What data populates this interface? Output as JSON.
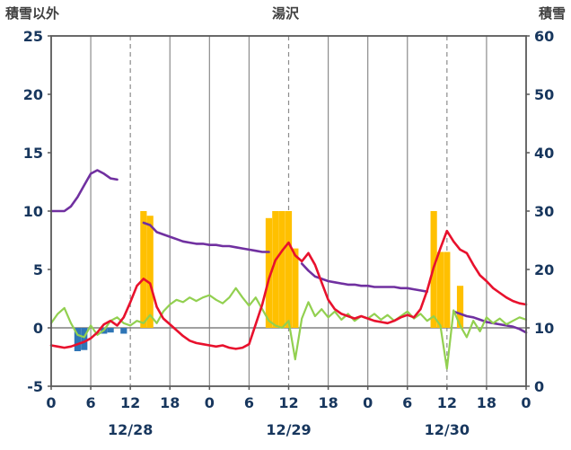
{
  "header": {
    "left_axis_title": "積雪以外",
    "station": "湯沢",
    "right_axis_title": "積雪"
  },
  "colors": {
    "axis_text": "#17365d",
    "grid": "#8c8c8c",
    "frame": "#595959",
    "zero_line": "#808080",
    "snowfall_bar": "#FFC000",
    "precip_bar": "#2E75B6",
    "snow_depth_line": "#7030A0",
    "temperature_line": "#E8112D",
    "wind_line": "#92D050"
  },
  "chart_data": {
    "type": "line",
    "title": "湯沢",
    "x_axis": {
      "hours_total": 72,
      "tick_step": 6,
      "tick_labels": [
        "0",
        "6",
        "12",
        "18",
        "0",
        "6",
        "12",
        "18",
        "0",
        "6",
        "12",
        "18",
        "0"
      ],
      "date_labels": [
        "12/28",
        "12/29",
        "12/30"
      ],
      "date_label_hours": [
        12,
        36,
        60
      ],
      "dashed_hours": [
        12,
        36,
        60
      ]
    },
    "left_axis": {
      "label": "積雪以外",
      "min": -5,
      "max": 25,
      "ticks": [
        25,
        20,
        15,
        10,
        5,
        0,
        -5
      ]
    },
    "right_axis": {
      "label": "積雪",
      "min": 0,
      "max": 60,
      "ticks": [
        60,
        50,
        40,
        30,
        20,
        10,
        0
      ]
    },
    "series": [
      {
        "name": "snowfall_bars",
        "type": "bar",
        "color_key": "snowfall_bar",
        "points": [
          [
            14,
            10
          ],
          [
            15,
            9.6
          ],
          [
            33,
            9.4
          ],
          [
            34,
            10
          ],
          [
            35,
            10
          ],
          [
            36,
            10
          ],
          [
            37,
            6.8
          ],
          [
            58,
            10
          ],
          [
            59,
            6.5
          ],
          [
            60,
            6.5
          ],
          [
            62,
            3.6
          ]
        ]
      },
      {
        "name": "precip_bars",
        "type": "bar",
        "color_key": "precip_bar",
        "points": [
          [
            4,
            -2.0
          ],
          [
            5,
            -1.9
          ],
          [
            8,
            -0.5
          ],
          [
            9,
            -0.4
          ],
          [
            11,
            -0.5
          ]
        ]
      },
      {
        "name": "snow_depth_line",
        "type": "line",
        "color_key": "snow_depth_line",
        "width": 2.6,
        "segments": [
          [
            [
              0,
              10
            ],
            [
              1,
              10
            ],
            [
              2,
              10
            ],
            [
              3,
              10.4
            ],
            [
              4,
              11.2
            ],
            [
              5,
              12.2
            ],
            [
              6,
              13.2
            ],
            [
              7,
              13.5
            ],
            [
              8,
              13.2
            ],
            [
              9,
              12.8
            ],
            [
              10,
              12.7
            ]
          ],
          [
            [
              14,
              9.0
            ],
            [
              15,
              8.8
            ],
            [
              16,
              8.2
            ],
            [
              17,
              8.0
            ],
            [
              18,
              7.8
            ],
            [
              19,
              7.6
            ],
            [
              20,
              7.4
            ],
            [
              21,
              7.3
            ],
            [
              22,
              7.2
            ],
            [
              23,
              7.2
            ],
            [
              24,
              7.1
            ],
            [
              25,
              7.1
            ],
            [
              26,
              7.0
            ],
            [
              27,
              7.0
            ],
            [
              28,
              6.9
            ],
            [
              29,
              6.8
            ],
            [
              30,
              6.7
            ],
            [
              31,
              6.6
            ],
            [
              32,
              6.5
            ],
            [
              33,
              6.5
            ]
          ],
          [
            [
              38,
              5.5
            ],
            [
              39,
              4.9
            ],
            [
              40,
              4.4
            ],
            [
              41,
              4.2
            ],
            [
              42,
              4.0
            ],
            [
              43,
              3.9
            ],
            [
              44,
              3.8
            ],
            [
              45,
              3.7
            ],
            [
              46,
              3.7
            ],
            [
              47,
              3.6
            ],
            [
              48,
              3.6
            ],
            [
              49,
              3.5
            ],
            [
              50,
              3.5
            ],
            [
              51,
              3.5
            ],
            [
              52,
              3.5
            ],
            [
              53,
              3.4
            ],
            [
              54,
              3.4
            ],
            [
              55,
              3.3
            ],
            [
              56,
              3.2
            ],
            [
              57,
              3.1
            ]
          ],
          [
            [
              61,
              1.4
            ],
            [
              62,
              1.2
            ],
            [
              63,
              1.0
            ],
            [
              64,
              0.9
            ],
            [
              65,
              0.7
            ],
            [
              66,
              0.5
            ],
            [
              67,
              0.4
            ],
            [
              68,
              0.3
            ],
            [
              69,
              0.2
            ],
            [
              70,
              0.1
            ],
            [
              71,
              -0.1
            ],
            [
              72,
              -0.4
            ]
          ]
        ]
      },
      {
        "name": "wind_line",
        "type": "line",
        "color_key": "wind_line",
        "width": 2.2,
        "values": [
          0.4,
          1.2,
          1.7,
          0.4,
          -0.6,
          -0.8,
          0.2,
          -0.6,
          -0.2,
          0.6,
          0.9,
          0.4,
          0.2,
          0.6,
          0.4,
          1.1,
          0.4,
          1.4,
          2.0,
          2.4,
          2.2,
          2.6,
          2.3,
          2.6,
          2.8,
          2.4,
          2.1,
          2.6,
          3.4,
          2.6,
          1.9,
          2.6,
          1.6,
          0.6,
          0.2,
          0.0,
          0.6,
          -2.7,
          0.8,
          2.2,
          1.0,
          1.6,
          0.9,
          1.4,
          0.7,
          1.2,
          0.6,
          1.0,
          0.8,
          1.2,
          0.7,
          1.1,
          0.6,
          1.0,
          1.4,
          0.8,
          1.2,
          0.6,
          1.0,
          0.2,
          -3.5,
          1.5,
          0.2,
          -0.8,
          0.6,
          -0.3,
          0.9,
          0.4,
          0.8,
          0.3,
          0.6,
          0.9,
          0.7
        ]
      },
      {
        "name": "temperature_line",
        "type": "line",
        "color_key": "temperature_line",
        "width": 2.6,
        "values": [
          -1.5,
          -1.6,
          -1.7,
          -1.6,
          -1.4,
          -1.2,
          -0.9,
          -0.4,
          0.3,
          0.6,
          0.2,
          0.9,
          2.2,
          3.6,
          4.2,
          3.8,
          1.8,
          0.8,
          0.3,
          -0.2,
          -0.7,
          -1.1,
          -1.3,
          -1.4,
          -1.5,
          -1.6,
          -1.5,
          -1.7,
          -1.8,
          -1.7,
          -1.4,
          0.3,
          2.0,
          4.2,
          5.8,
          6.6,
          7.3,
          6.2,
          5.7,
          6.4,
          5.4,
          3.9,
          2.4,
          1.6,
          1.2,
          1.0,
          0.8,
          1.0,
          0.8,
          0.6,
          0.5,
          0.4,
          0.6,
          0.9,
          1.1,
          0.9,
          1.6,
          3.2,
          5.2,
          6.8,
          8.3,
          7.4,
          6.7,
          6.4,
          5.4,
          4.5,
          4.0,
          3.4,
          3.0,
          2.6,
          2.3,
          2.1,
          2.0
        ]
      }
    ]
  }
}
